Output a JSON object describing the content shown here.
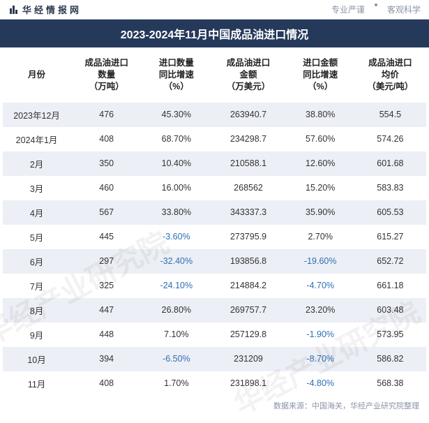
{
  "header": {
    "brand": "华经情报网",
    "tag1": "专业严谨",
    "tag2": "客观科学"
  },
  "title": "2023-2024年11月中国成品油进口情况",
  "watermark": "华经产业研究院",
  "footer": "数据来源：中国海关，华经产业研究院整理",
  "columns": [
    "月份",
    "成品油进口\n数量\n（万吨）",
    "进口数量\n同比增速\n（%）",
    "成品油进口\n金额\n（万美元）",
    "进口金额\n同比增速\n（%）",
    "成品油进口\n均价\n（美元/吨）"
  ],
  "styling": {
    "title_bg": "#25395b",
    "title_color": "#ffffff",
    "alt_row_bg": "#eceff5",
    "neg_color": "#2f6fb5",
    "text_color": "#333333",
    "header_border": "#d0d4dc",
    "brand_color": "#2d3a4f",
    "muted_color": "#8a93a6",
    "font_family": "Microsoft YaHei",
    "title_fontsize": 16,
    "body_fontsize": 12.5,
    "col_widths_pct": [
      16,
      17,
      16,
      18,
      16,
      17
    ]
  },
  "rows": [
    {
      "month": "2023年12月",
      "qty": "476",
      "qty_yoy": "45.30%",
      "qty_neg": false,
      "amt": "263940.7",
      "amt_yoy": "38.80%",
      "amt_neg": false,
      "price": "554.5"
    },
    {
      "month": "2024年1月",
      "qty": "408",
      "qty_yoy": "68.70%",
      "qty_neg": false,
      "amt": "234298.7",
      "amt_yoy": "57.60%",
      "amt_neg": false,
      "price": "574.26"
    },
    {
      "month": "2月",
      "qty": "350",
      "qty_yoy": "10.40%",
      "qty_neg": false,
      "amt": "210588.1",
      "amt_yoy": "12.60%",
      "amt_neg": false,
      "price": "601.68"
    },
    {
      "month": "3月",
      "qty": "460",
      "qty_yoy": "16.00%",
      "qty_neg": false,
      "amt": "268562",
      "amt_yoy": "15.20%",
      "amt_neg": false,
      "price": "583.83"
    },
    {
      "month": "4月",
      "qty": "567",
      "qty_yoy": "33.80%",
      "qty_neg": false,
      "amt": "343337.3",
      "amt_yoy": "35.90%",
      "amt_neg": false,
      "price": "605.53"
    },
    {
      "month": "5月",
      "qty": "445",
      "qty_yoy": "-3.60%",
      "qty_neg": true,
      "amt": "273795.9",
      "amt_yoy": "2.70%",
      "amt_neg": false,
      "price": "615.27"
    },
    {
      "month": "6月",
      "qty": "297",
      "qty_yoy": "-32.40%",
      "qty_neg": true,
      "amt": "193856.8",
      "amt_yoy": "-19.60%",
      "amt_neg": true,
      "price": "652.72"
    },
    {
      "month": "7月",
      "qty": "325",
      "qty_yoy": "-24.10%",
      "qty_neg": true,
      "amt": "214884.2",
      "amt_yoy": "-4.70%",
      "amt_neg": true,
      "price": "661.18"
    },
    {
      "month": "8月",
      "qty": "447",
      "qty_yoy": "26.80%",
      "qty_neg": false,
      "amt": "269757.7",
      "amt_yoy": "23.20%",
      "amt_neg": false,
      "price": "603.48"
    },
    {
      "month": "9月",
      "qty": "448",
      "qty_yoy": "7.10%",
      "qty_neg": false,
      "amt": "257129.8",
      "amt_yoy": "-1.90%",
      "amt_neg": true,
      "price": "573.95"
    },
    {
      "month": "10月",
      "qty": "394",
      "qty_yoy": "-6.50%",
      "qty_neg": true,
      "amt": "231209",
      "amt_yoy": "-8.70%",
      "amt_neg": true,
      "price": "586.82"
    },
    {
      "month": "11月",
      "qty": "408",
      "qty_yoy": "1.70%",
      "qty_neg": false,
      "amt": "231898.1",
      "amt_yoy": "-4.80%",
      "amt_neg": true,
      "price": "568.38"
    }
  ]
}
